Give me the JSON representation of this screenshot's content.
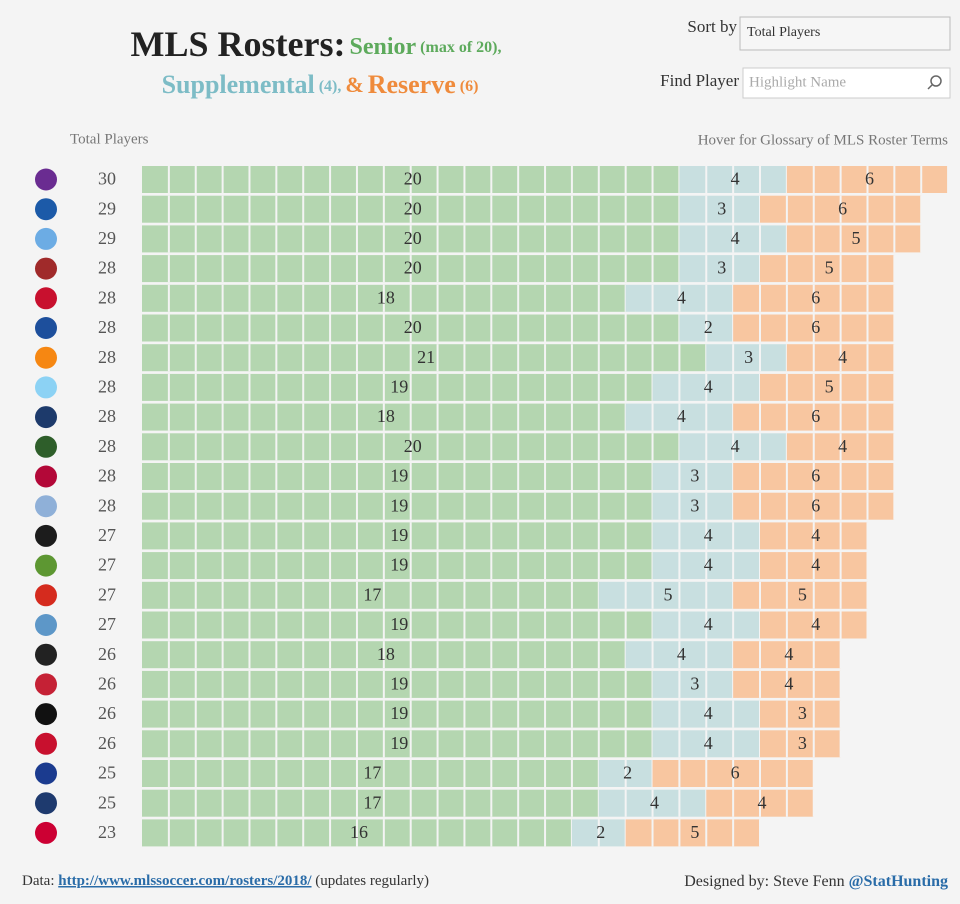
{
  "chart_data": {
    "type": "stacked-units",
    "title": "MLS Rosters:",
    "conjunction": "&",
    "series": [
      {
        "name": "Senior",
        "limit_label": "(max of 20),",
        "color": "#b4d6b0",
        "title_color": "#5daa5c",
        "values": [
          20,
          20,
          20,
          20,
          18,
          20,
          21,
          19,
          18,
          20,
          19,
          19,
          19,
          19,
          17,
          19,
          18,
          19,
          19,
          19,
          17,
          17,
          16
        ]
      },
      {
        "name": "Supplemental",
        "limit_label": "(4),",
        "color": "#c8dfe0",
        "title_color": "#7dbcc6",
        "values": [
          4,
          3,
          4,
          3,
          4,
          2,
          3,
          4,
          4,
          4,
          3,
          3,
          4,
          4,
          5,
          4,
          4,
          3,
          4,
          4,
          2,
          4,
          2
        ]
      },
      {
        "name": "Reserve",
        "limit_label": "(6)",
        "color": "#f8c6a0",
        "title_color": "#ef8b3c",
        "values": [
          6,
          6,
          5,
          5,
          6,
          6,
          4,
          5,
          6,
          4,
          6,
          6,
          4,
          4,
          5,
          4,
          4,
          4,
          3,
          3,
          6,
          4,
          5
        ]
      }
    ],
    "totals_label": "Total Players",
    "totals": [
      30,
      29,
      29,
      28,
      28,
      28,
      28,
      28,
      28,
      28,
      28,
      28,
      27,
      27,
      27,
      27,
      26,
      26,
      26,
      26,
      25,
      25,
      23
    ],
    "glossary_hint": "Hover for Glossary of MLS Roster Terms",
    "sort_label": "Sort by",
    "sort_value": "Total Players",
    "find_label": "Find Player",
    "find_placeholder": "Highlight Name",
    "footer": {
      "data_label": "Data:",
      "link": "http://www.mlssoccer.com/rosters/2018/",
      "link_note": "(updates regularly)",
      "credit": "Designed by: Steve Fenn",
      "handle": "@StatHunting"
    }
  }
}
